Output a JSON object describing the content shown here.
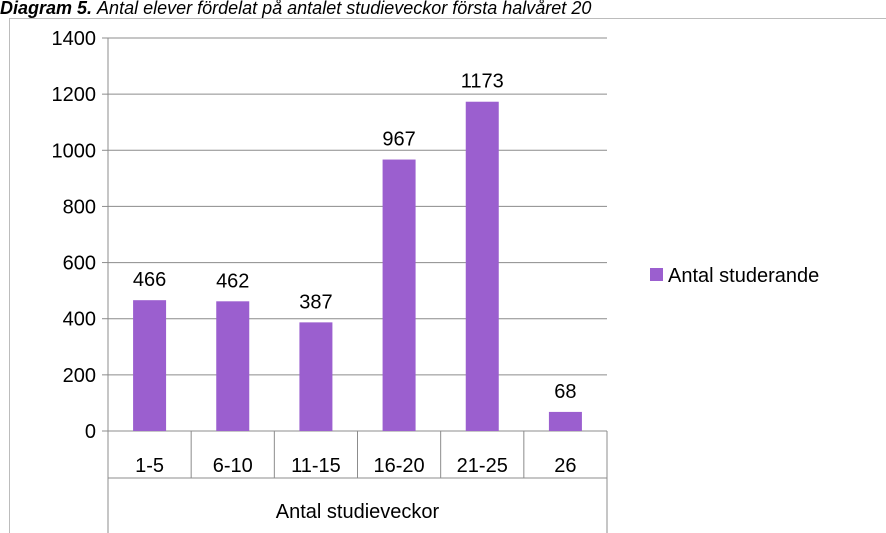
{
  "chart_data": {
    "type": "bar",
    "title_prefix": "Diagram 5.",
    "title": "Antal elever fördelat på antalet studieveckor första halvåret 20",
    "categories": [
      "1-5",
      "6-10",
      "11-15",
      "16-20",
      "21-25",
      "26"
    ],
    "x_label": "Antal studieveckor",
    "series": [
      {
        "name": "Antal studerande",
        "color": "#9b5fcf",
        "values": [
          466,
          462,
          387,
          967,
          1173,
          68
        ]
      }
    ],
    "ylim": [
      0,
      1400
    ],
    "yticks": [
      0,
      200,
      400,
      600,
      800,
      1000,
      1200,
      1400
    ],
    "grid": true,
    "legend": "right"
  }
}
